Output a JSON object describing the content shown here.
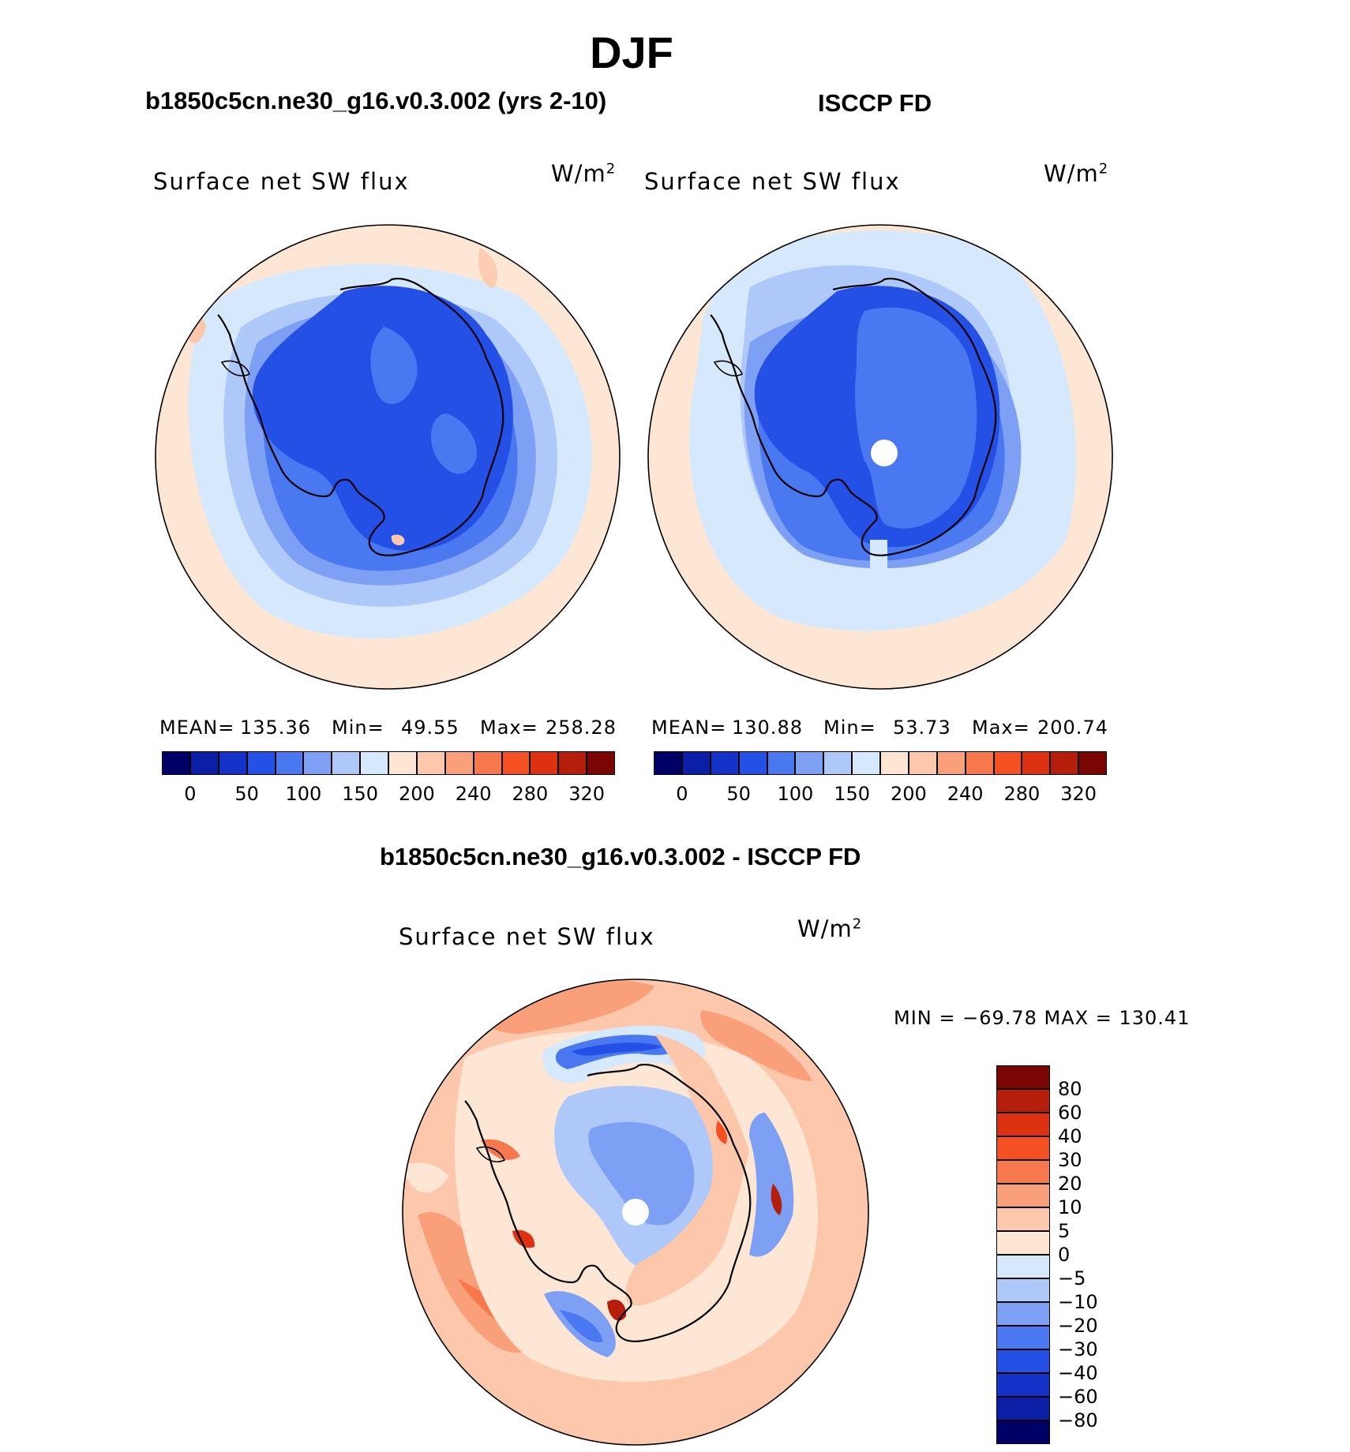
{
  "figure": {
    "season": "DJF"
  },
  "panels": {
    "model": {
      "title": "b1850c5cn.ne30_g16.v0.3.002 (yrs 2-10)",
      "field": "Surface net SW flux",
      "units_base": "W/m",
      "units_exp": "2",
      "mean_label": "MEAN=",
      "mean_value": "135.36",
      "min_label": "Min=",
      "min_value": "49.55",
      "max_label": "Max=",
      "max_value": "258.28"
    },
    "obs": {
      "title": "ISCCP FD",
      "field": "Surface net SW flux",
      "units_base": "W/m",
      "units_exp": "2",
      "mean_label": "MEAN=",
      "mean_value": "130.88",
      "min_label": "Min=",
      "min_value": "53.73",
      "max_label": "Max=",
      "max_value": "200.74"
    },
    "diff": {
      "title": "b1850c5cn.ne30_g16.v0.3.002 - ISCCP FD",
      "field": "Surface net SW flux",
      "units_base": "W/m",
      "units_exp": "2",
      "range_text": "MIN = −69.78 MAX = 130.41"
    }
  },
  "colorbars": {
    "absolute": {
      "colors": [
        "#000066",
        "#0a1ea6",
        "#1432c8",
        "#2450e6",
        "#4a78f0",
        "#7da0f5",
        "#aec8fa",
        "#d6e8fb",
        "#fde6d4",
        "#fcc7aa",
        "#f9a07a",
        "#f8784e",
        "#f55022",
        "#dd3112",
        "#b41e0a",
        "#7a0503"
      ],
      "ticks": [
        "0",
        "50",
        "100",
        "150",
        "200",
        "240",
        "280",
        "320"
      ]
    },
    "difference": {
      "colors_top_to_bottom": [
        "#7a0503",
        "#b41e0a",
        "#dd3112",
        "#f55022",
        "#f8784e",
        "#f9a07a",
        "#fcc7aa",
        "#fde6d4",
        "#d6e8fb",
        "#aec8fa",
        "#7da0f5",
        "#4a78f0",
        "#2450e6",
        "#1432c8",
        "#0a1ea6",
        "#000066"
      ],
      "ticks_top_to_bottom": [
        "80",
        "60",
        "40",
        "30",
        "20",
        "10",
        "5",
        "0",
        "−5",
        "−10",
        "−20",
        "−30",
        "−40",
        "−60",
        "−80"
      ]
    }
  }
}
